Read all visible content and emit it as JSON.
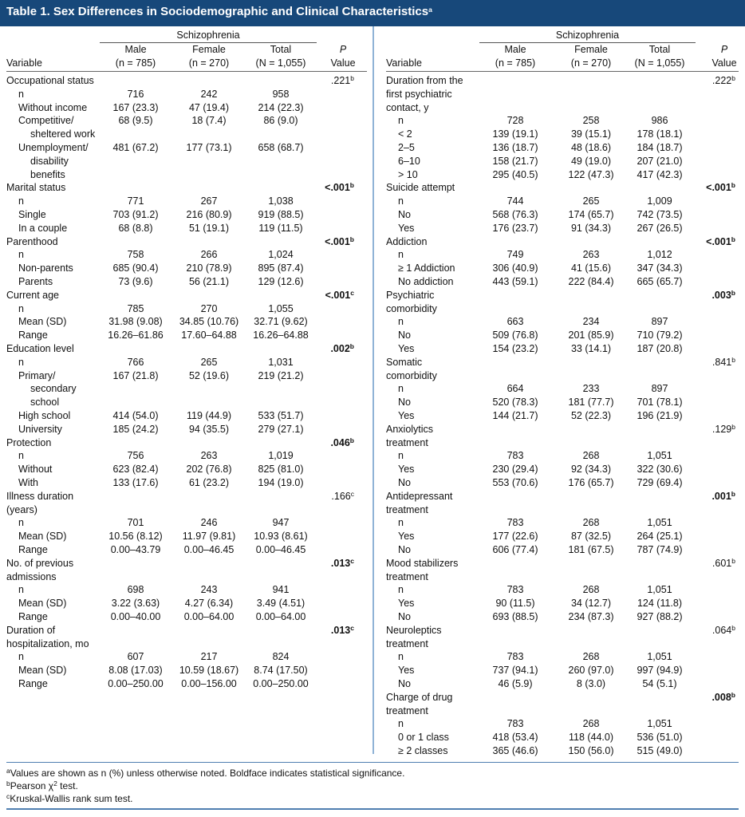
{
  "title": "Table 1. Sex Differences in Sociodemographic and Clinical Characteristics",
  "title_note": "a",
  "header": {
    "group": "Schizophrenia",
    "variable": "Variable",
    "columns": [
      {
        "name": "Male",
        "n": "(n = 785)"
      },
      {
        "name": "Female",
        "n": "(n = 270)"
      },
      {
        "name": "Total",
        "n": "(N = 1,055)"
      }
    ],
    "p": "P",
    "p_sub": "Value"
  },
  "left": [
    {
      "label": [
        "Occupational status"
      ],
      "p": ".221",
      "p_note": "b",
      "bold": false,
      "rows": [
        {
          "label": [
            "n"
          ],
          "cells": [
            "716",
            "242",
            "958"
          ]
        },
        {
          "label": [
            "Without income"
          ],
          "cells": [
            "167 (23.3)",
            "47 (19.4)",
            "214 (22.3)"
          ]
        },
        {
          "label": [
            "Competitive/",
            "sheltered work"
          ],
          "cells": [
            "68 (9.5)",
            "18 (7.4)",
            "86 (9.0)"
          ]
        },
        {
          "label": [
            "Unemployment/",
            "disability",
            "benefits"
          ],
          "cells": [
            "481 (67.2)",
            "177 (73.1)",
            "658 (68.7)"
          ]
        }
      ]
    },
    {
      "label": [
        "Marital status"
      ],
      "p": "<.001",
      "p_note": "b",
      "bold": true,
      "rows": [
        {
          "label": [
            "n"
          ],
          "cells": [
            "771",
            "267",
            "1,038"
          ]
        },
        {
          "label": [
            "Single"
          ],
          "cells": [
            "703 (91.2)",
            "216 (80.9)",
            "919 (88.5)"
          ]
        },
        {
          "label": [
            "In a couple"
          ],
          "cells": [
            "68 (8.8)",
            "51 (19.1)",
            "119 (11.5)"
          ]
        }
      ]
    },
    {
      "label": [
        "Parenthood"
      ],
      "p": "<.001",
      "p_note": "b",
      "bold": true,
      "rows": [
        {
          "label": [
            "n"
          ],
          "cells": [
            "758",
            "266",
            "1,024"
          ]
        },
        {
          "label": [
            "Non-parents"
          ],
          "cells": [
            "685 (90.4)",
            "210 (78.9)",
            "895 (87.4)"
          ]
        },
        {
          "label": [
            "Parents"
          ],
          "cells": [
            "73 (9.6)",
            "56 (21.1)",
            "129 (12.6)"
          ]
        }
      ]
    },
    {
      "label": [
        "Current age"
      ],
      "p": "<.001",
      "p_note": "c",
      "bold": true,
      "rows": [
        {
          "label": [
            "n"
          ],
          "cells": [
            "785",
            "270",
            "1,055"
          ]
        },
        {
          "label": [
            "Mean (SD)"
          ],
          "cells": [
            "31.98 (9.08)",
            "34.85 (10.76)",
            "32.71 (9.62)"
          ]
        },
        {
          "label": [
            "Range"
          ],
          "cells": [
            "16.26–61.86",
            "17.60–64.88",
            "16.26–64.88"
          ]
        }
      ]
    },
    {
      "label": [
        "Education level"
      ],
      "p": ".002",
      "p_note": "b",
      "bold": true,
      "rows": [
        {
          "label": [
            "n"
          ],
          "cells": [
            "766",
            "265",
            "1,031"
          ]
        },
        {
          "label": [
            "Primary/",
            "secondary",
            "school"
          ],
          "cells": [
            "167 (21.8)",
            "52 (19.6)",
            "219 (21.2)"
          ]
        },
        {
          "label": [
            "High school"
          ],
          "cells": [
            "414 (54.0)",
            "119 (44.9)",
            "533 (51.7)"
          ]
        },
        {
          "label": [
            "University"
          ],
          "cells": [
            "185 (24.2)",
            "94 (35.5)",
            "279 (27.1)"
          ]
        }
      ]
    },
    {
      "label": [
        "Protection"
      ],
      "p": ".046",
      "p_note": "b",
      "bold": true,
      "rows": [
        {
          "label": [
            "n"
          ],
          "cells": [
            "756",
            "263",
            "1,019"
          ]
        },
        {
          "label": [
            "Without"
          ],
          "cells": [
            "623 (82.4)",
            "202 (76.8)",
            "825 (81.0)"
          ]
        },
        {
          "label": [
            "With"
          ],
          "cells": [
            "133 (17.6)",
            "61 (23.2)",
            "194 (19.0)"
          ]
        }
      ]
    },
    {
      "label": [
        "Illness duration",
        "(years)"
      ],
      "p": ".166",
      "p_note": "c",
      "bold": false,
      "rows": [
        {
          "label": [
            "n"
          ],
          "cells": [
            "701",
            "246",
            "947"
          ]
        },
        {
          "label": [
            "Mean (SD)"
          ],
          "cells": [
            "10.56 (8.12)",
            "11.97 (9.81)",
            "10.93 (8.61)"
          ]
        },
        {
          "label": [
            "Range"
          ],
          "cells": [
            "0.00–43.79",
            "0.00–46.45",
            "0.00–46.45"
          ]
        }
      ]
    },
    {
      "label": [
        "No. of previous",
        "admissions"
      ],
      "p": ".013",
      "p_note": "c",
      "bold": true,
      "rows": [
        {
          "label": [
            "n"
          ],
          "cells": [
            "698",
            "243",
            "941"
          ]
        },
        {
          "label": [
            "Mean (SD)"
          ],
          "cells": [
            "3.22 (3.63)",
            "4.27 (6.34)",
            "3.49 (4.51)"
          ]
        },
        {
          "label": [
            "Range"
          ],
          "cells": [
            "0.00–40.00",
            "0.00–64.00",
            "0.00–64.00"
          ]
        }
      ]
    },
    {
      "label": [
        "Duration of",
        "hospitalization, mo"
      ],
      "p": ".013",
      "p_note": "c",
      "bold": true,
      "rows": [
        {
          "label": [
            "n"
          ],
          "cells": [
            "607",
            "217",
            "824"
          ]
        },
        {
          "label": [
            "Mean (SD)"
          ],
          "cells": [
            "8.08 (17.03)",
            "10.59 (18.67)",
            "8.74 (17.50)"
          ]
        },
        {
          "label": [
            "Range"
          ],
          "cells": [
            "0.00–250.00",
            "0.00–156.00",
            "0.00–250.00"
          ]
        }
      ]
    }
  ],
  "right": [
    {
      "label": [
        "Duration from the",
        "first psychiatric",
        "contact, y"
      ],
      "p": ".222",
      "p_note": "b",
      "bold": false,
      "rows": [
        {
          "label": [
            "n"
          ],
          "cells": [
            "728",
            "258",
            "986"
          ]
        },
        {
          "label": [
            "< 2"
          ],
          "cells": [
            "139 (19.1)",
            "39 (15.1)",
            "178 (18.1)"
          ]
        },
        {
          "label": [
            "2–5"
          ],
          "cells": [
            "136 (18.7)",
            "48 (18.6)",
            "184 (18.7)"
          ]
        },
        {
          "label": [
            "6–10"
          ],
          "cells": [
            "158 (21.7)",
            "49 (19.0)",
            "207 (21.0)"
          ]
        },
        {
          "label": [
            "> 10"
          ],
          "cells": [
            "295 (40.5)",
            "122 (47.3)",
            "417 (42.3)"
          ]
        }
      ]
    },
    {
      "label": [
        "Suicide attempt"
      ],
      "p": "<.001",
      "p_note": "b",
      "bold": true,
      "rows": [
        {
          "label": [
            "n"
          ],
          "cells": [
            "744",
            "265",
            "1,009"
          ]
        },
        {
          "label": [
            "No"
          ],
          "cells": [
            "568 (76.3)",
            "174 (65.7)",
            "742 (73.5)"
          ]
        },
        {
          "label": [
            "Yes"
          ],
          "cells": [
            "176 (23.7)",
            "91 (34.3)",
            "267 (26.5)"
          ]
        }
      ]
    },
    {
      "label": [
        "Addiction"
      ],
      "p": "<.001",
      "p_note": "b",
      "bold": true,
      "rows": [
        {
          "label": [
            "n"
          ],
          "cells": [
            "749",
            "263",
            "1,012"
          ]
        },
        {
          "label": [
            "≥ 1 Addiction"
          ],
          "cells": [
            "306 (40.9)",
            "41 (15.6)",
            "347 (34.3)"
          ]
        },
        {
          "label": [
            "No addiction"
          ],
          "cells": [
            "443 (59.1)",
            "222 (84.4)",
            "665 (65.7)"
          ]
        }
      ]
    },
    {
      "label": [
        "Psychiatric",
        "comorbidity"
      ],
      "p": ".003",
      "p_note": "b",
      "bold": true,
      "rows": [
        {
          "label": [
            "n"
          ],
          "cells": [
            "663",
            "234",
            "897"
          ]
        },
        {
          "label": [
            "No"
          ],
          "cells": [
            "509 (76.8)",
            "201 (85.9)",
            "710 (79.2)"
          ]
        },
        {
          "label": [
            "Yes"
          ],
          "cells": [
            "154 (23.2)",
            "33 (14.1)",
            "187 (20.8)"
          ]
        }
      ]
    },
    {
      "label": [
        "Somatic",
        "comorbidity"
      ],
      "p": ".841",
      "p_note": "b",
      "bold": false,
      "rows": [
        {
          "label": [
            "n"
          ],
          "cells": [
            "664",
            "233",
            "897"
          ]
        },
        {
          "label": [
            "No"
          ],
          "cells": [
            "520 (78.3)",
            "181 (77.7)",
            "701 (78.1)"
          ]
        },
        {
          "label": [
            "Yes"
          ],
          "cells": [
            "144 (21.7)",
            "52 (22.3)",
            "196 (21.9)"
          ]
        }
      ]
    },
    {
      "label": [
        "Anxiolytics",
        "treatment"
      ],
      "p": ".129",
      "p_note": "b",
      "bold": false,
      "rows": [
        {
          "label": [
            "n"
          ],
          "cells": [
            "783",
            "268",
            "1,051"
          ]
        },
        {
          "label": [
            "Yes"
          ],
          "cells": [
            "230 (29.4)",
            "92 (34.3)",
            "322 (30.6)"
          ]
        },
        {
          "label": [
            "No"
          ],
          "cells": [
            "553 (70.6)",
            "176 (65.7)",
            "729 (69.4)"
          ]
        }
      ]
    },
    {
      "label": [
        "Antidepressant",
        "treatment"
      ],
      "p": ".001",
      "p_note": "b",
      "bold": true,
      "rows": [
        {
          "label": [
            "n"
          ],
          "cells": [
            "783",
            "268",
            "1,051"
          ]
        },
        {
          "label": [
            "Yes"
          ],
          "cells": [
            "177 (22.6)",
            "87 (32.5)",
            "264 (25.1)"
          ]
        },
        {
          "label": [
            "No"
          ],
          "cells": [
            "606 (77.4)",
            "181 (67.5)",
            "787 (74.9)"
          ]
        }
      ]
    },
    {
      "label": [
        "Mood stabilizers",
        "treatment"
      ],
      "p": ".601",
      "p_note": "b",
      "bold": false,
      "rows": [
        {
          "label": [
            "n"
          ],
          "cells": [
            "783",
            "268",
            "1,051"
          ]
        },
        {
          "label": [
            "Yes"
          ],
          "cells": [
            "90 (11.5)",
            "34 (12.7)",
            "124 (11.8)"
          ]
        },
        {
          "label": [
            "No"
          ],
          "cells": [
            "693 (88.5)",
            "234 (87.3)",
            "927 (88.2)"
          ]
        }
      ]
    },
    {
      "label": [
        "Neuroleptics",
        "treatment"
      ],
      "p": ".064",
      "p_note": "b",
      "bold": false,
      "rows": [
        {
          "label": [
            "n"
          ],
          "cells": [
            "783",
            "268",
            "1,051"
          ]
        },
        {
          "label": [
            "Yes"
          ],
          "cells": [
            "737 (94.1)",
            "260 (97.0)",
            "997 (94.9)"
          ]
        },
        {
          "label": [
            "No"
          ],
          "cells": [
            "46 (5.9)",
            "8 (3.0)",
            "54 (5.1)"
          ]
        }
      ]
    },
    {
      "label": [
        "Charge of drug",
        "treatment"
      ],
      "p": ".008",
      "p_note": "b",
      "bold": true,
      "rows": [
        {
          "label": [
            "n"
          ],
          "cells": [
            "783",
            "268",
            "1,051"
          ]
        },
        {
          "label": [
            "0 or 1 class"
          ],
          "cells": [
            "418 (53.4)",
            "118 (44.0)",
            "536 (51.0)"
          ]
        },
        {
          "label": [
            "≥ 2 classes"
          ],
          "cells": [
            "365 (46.6)",
            "150 (56.0)",
            "515 (49.0)"
          ]
        }
      ]
    }
  ],
  "footnotes": [
    {
      "mark": "a",
      "text": "Values are shown as n (%) unless otherwise noted. Boldface indicates statistical significance."
    },
    {
      "mark": "b",
      "text": "Pearson χ",
      "sup": "2",
      "text_end": " test."
    },
    {
      "mark": "c",
      "text": "Kruskal-Wallis rank sum test."
    }
  ]
}
